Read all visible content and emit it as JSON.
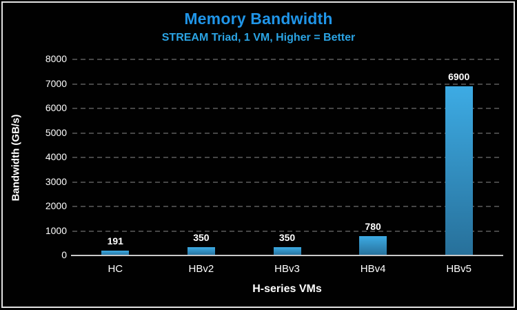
{
  "window": {
    "background_color": "#010101",
    "frame_color": "#e3e3e3"
  },
  "chart_data": {
    "type": "bar",
    "title": "Memory Bandwidth",
    "subtitle": "STREAM Triad, 1 VM, Higher = Better",
    "xlabel": "H-series VMs",
    "ylabel": "Bandwidth (GB/s)",
    "categories": [
      "HC",
      "HBv2",
      "HBv3",
      "HBv4",
      "HBv5"
    ],
    "values": [
      191,
      350,
      350,
      780,
      6900
    ],
    "value_labels": [
      "191",
      "350",
      "350",
      "780",
      "6900"
    ],
    "ylim": [
      0,
      8000
    ],
    "ytick_step": 1000,
    "yticks": [
      0,
      1000,
      2000,
      3000,
      4000,
      5000,
      6000,
      7000,
      8000
    ],
    "grid": "horizontal-dashed",
    "legend": "none",
    "colors": {
      "title": "#2095e8",
      "subtitle": "#2ba4e4",
      "bar_top": "#3dabe4",
      "bar_bottom": "#27709a",
      "gridline": "#464646",
      "baseline": "#c9c9c9",
      "axis_text": "#ffffff"
    }
  }
}
